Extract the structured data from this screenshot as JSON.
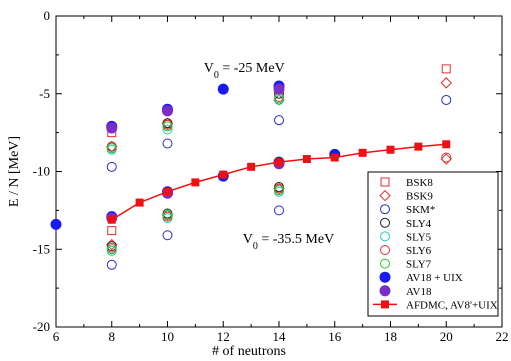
{
  "chart_data": {
    "type": "scatter",
    "xlabel": "# of neutrons",
    "ylabel": "E / N [MeV]",
    "xlim": [
      6,
      22
    ],
    "ylim": [
      -20,
      0
    ],
    "x_ticks": [
      6,
      8,
      10,
      12,
      14,
      16,
      18,
      20,
      22
    ],
    "y_ticks": [
      0,
      -5,
      -10,
      -15,
      -20
    ],
    "grid": false,
    "legend_position": "bottom-right",
    "annotations": [
      {
        "text": "V",
        "sub": "0",
        "rest": " = -25 MeV",
        "x": 11.3,
        "y": -3.6
      },
      {
        "text": "V",
        "sub": "0",
        "rest": " = -35.5 MeV",
        "x": 12.7,
        "y": -14.6
      }
    ],
    "series": [
      {
        "name": "BSK8",
        "marker": "square-open",
        "color": "#e03030",
        "x": [
          8,
          8,
          20
        ],
        "y": [
          -7.5,
          -13.8,
          -3.4
        ]
      },
      {
        "name": "BSK9",
        "marker": "diamond-open",
        "color": "#e03030",
        "x": [
          8,
          8,
          10,
          10,
          14,
          14,
          20,
          20
        ],
        "y": [
          -8.4,
          -14.7,
          -6.9,
          -12.8,
          -5.4,
          -11.1,
          -4.3,
          -9.2
        ]
      },
      {
        "name": "SKM*",
        "marker": "circle-open",
        "color": "#2a2acc",
        "x": [
          8,
          8,
          10,
          10,
          14,
          14,
          20
        ],
        "y": [
          -9.7,
          -16.0,
          -8.2,
          -14.1,
          -6.7,
          -12.5,
          -5.4
        ]
      },
      {
        "name": "SLY4",
        "marker": "circle-open",
        "color": "#222222",
        "x": [
          8,
          8,
          10,
          10,
          14,
          14
        ],
        "y": [
          -8.4,
          -14.8,
          -6.9,
          -12.7,
          -5.0,
          -11.0
        ]
      },
      {
        "name": "SLY5",
        "marker": "circle-open",
        "color": "#22c8c8",
        "x": [
          8,
          8,
          10,
          10,
          14,
          14
        ],
        "y": [
          -8.6,
          -15.1,
          -7.3,
          -13.0,
          -5.4,
          -11.3
        ]
      },
      {
        "name": "SLY6",
        "marker": "circle-open",
        "color": "#e03030",
        "x": [
          8,
          8,
          10,
          10,
          14,
          14,
          20
        ],
        "y": [
          -8.4,
          -14.9,
          -7.0,
          -12.9,
          -5.2,
          -11.1,
          -9.1
        ]
      },
      {
        "name": "SLY7",
        "marker": "circle-open",
        "color": "#22cc22",
        "x": [
          8,
          8,
          10,
          10,
          14,
          14
        ],
        "y": [
          -8.5,
          -15.0,
          -7.1,
          -12.8,
          -5.3,
          -11.2
        ]
      },
      {
        "name": "AV18 + UIX",
        "marker": "circle-filled",
        "color": "#1a1aee",
        "x": [
          6,
          8,
          8,
          10,
          10,
          12,
          12,
          14,
          14,
          16
        ],
        "y": [
          -13.4,
          -7.1,
          -12.9,
          -6.0,
          -11.3,
          -4.7,
          -10.3,
          -4.5,
          -9.4,
          -8.9
        ]
      },
      {
        "name": "AV18",
        "marker": "circle-filled",
        "color": "#7a2ec8",
        "x": [
          8,
          8,
          10,
          10,
          14,
          14
        ],
        "y": [
          -7.2,
          -13.0,
          -6.1,
          -11.4,
          -4.7,
          -9.5
        ]
      },
      {
        "name": "AFDMC, AV8'+UIX",
        "marker": "square-filled-line",
        "color": "#ee1111",
        "x": [
          8,
          9,
          10,
          11,
          12,
          13,
          14,
          15,
          16,
          17,
          18,
          19,
          20
        ],
        "y": [
          -13.1,
          -12.0,
          -11.3,
          -10.7,
          -10.2,
          -9.7,
          -9.4,
          -9.2,
          -9.1,
          -8.8,
          -8.6,
          -8.4,
          -8.25
        ]
      }
    ]
  }
}
